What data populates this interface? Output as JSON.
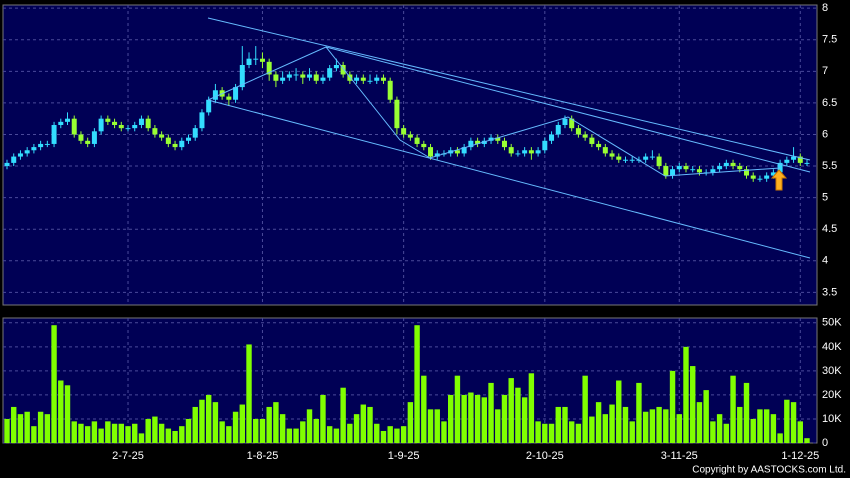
{
  "chart_data": {
    "type": "candlestick",
    "copyright": "Copyright by AASTOCKS.com Ltd.",
    "categories": [
      null,
      null,
      null,
      null,
      null,
      null,
      null,
      null,
      null,
      null,
      null,
      null,
      null,
      null,
      null,
      null,
      null,
      null,
      "2-7-25",
      null,
      null,
      null,
      null,
      null,
      null,
      null,
      null,
      null,
      null,
      null,
      null,
      null,
      null,
      null,
      null,
      null,
      null,
      null,
      "1-8-25",
      null,
      null,
      null,
      null,
      null,
      null,
      null,
      null,
      null,
      null,
      null,
      null,
      null,
      null,
      null,
      null,
      null,
      null,
      null,
      null,
      "1-9-25",
      null,
      null,
      null,
      null,
      null,
      null,
      null,
      null,
      null,
      null,
      null,
      null,
      null,
      null,
      null,
      null,
      null,
      null,
      null,
      null,
      "2-10-25",
      null,
      null,
      null,
      null,
      null,
      null,
      null,
      null,
      null,
      null,
      null,
      null,
      null,
      null,
      null,
      null,
      null,
      null,
      null,
      "3-11-25",
      null,
      null,
      null,
      null,
      null,
      null,
      null,
      null,
      null,
      null,
      null,
      null,
      null,
      null,
      null,
      null,
      null,
      "1-12-25",
      null
    ],
    "open": [
      5.5,
      5.55,
      5.65,
      5.7,
      5.75,
      5.8,
      5.85,
      5.85,
      6.15,
      6.2,
      6.25,
      6.0,
      5.9,
      5.85,
      6.05,
      6.25,
      6.2,
      6.15,
      6.1,
      6.1,
      6.15,
      6.25,
      6.1,
      6.0,
      5.95,
      5.85,
      5.8,
      5.9,
      5.95,
      6.1,
      6.35,
      6.55,
      6.7,
      6.6,
      6.55,
      6.75,
      7.1,
      7.2,
      7.2,
      7.15,
      6.95,
      6.85,
      6.9,
      6.95,
      6.95,
      6.9,
      6.95,
      6.85,
      6.9,
      7.05,
      7.1,
      6.95,
      6.85,
      6.9,
      6.85,
      6.85,
      6.9,
      6.85,
      6.55,
      6.1,
      6.0,
      5.95,
      5.85,
      5.8,
      5.65,
      5.7,
      5.7,
      5.75,
      5.7,
      5.8,
      5.9,
      5.85,
      5.9,
      5.95,
      5.9,
      5.8,
      5.7,
      5.7,
      5.75,
      5.7,
      5.75,
      5.9,
      6.0,
      6.15,
      6.25,
      6.1,
      6.0,
      5.95,
      5.85,
      5.8,
      5.7,
      5.65,
      5.6,
      5.6,
      5.6,
      5.6,
      5.65,
      5.65,
      5.5,
      5.35,
      5.45,
      5.5,
      5.45,
      5.45,
      5.4,
      5.4,
      5.45,
      5.5,
      5.55,
      5.5,
      5.45,
      5.35,
      5.3,
      5.3,
      5.35,
      5.4,
      5.55,
      5.6,
      5.65,
      5.55
    ],
    "high": [
      5.6,
      5.7,
      5.75,
      5.8,
      5.85,
      5.9,
      5.9,
      6.2,
      6.25,
      6.35,
      6.3,
      6.05,
      5.95,
      6.1,
      6.3,
      6.3,
      6.25,
      6.2,
      6.15,
      6.2,
      6.3,
      6.3,
      6.15,
      6.05,
      6.0,
      5.9,
      5.95,
      6.0,
      6.15,
      6.4,
      6.6,
      6.8,
      6.75,
      6.65,
      6.8,
      7.4,
      7.3,
      7.4,
      7.3,
      7.2,
      7.0,
      7.0,
      7.0,
      7.05,
      7.0,
      7.05,
      7.0,
      6.95,
      7.1,
      7.2,
      7.15,
      7.0,
      6.95,
      6.95,
      6.95,
      6.95,
      6.95,
      6.9,
      6.6,
      6.15,
      6.05,
      6.0,
      5.9,
      5.85,
      5.75,
      5.75,
      5.8,
      5.8,
      5.85,
      5.95,
      5.95,
      5.95,
      6.0,
      6.0,
      5.95,
      5.85,
      5.75,
      5.8,
      5.8,
      5.8,
      5.95,
      6.05,
      6.2,
      6.3,
      6.3,
      6.15,
      6.05,
      6.0,
      5.9,
      5.85,
      5.75,
      5.7,
      5.65,
      5.65,
      5.65,
      5.7,
      5.75,
      5.7,
      5.55,
      5.5,
      5.55,
      5.55,
      5.5,
      5.5,
      5.45,
      5.5,
      5.55,
      5.6,
      5.6,
      5.55,
      5.5,
      5.4,
      5.35,
      5.4,
      5.45,
      5.6,
      5.65,
      5.8,
      5.7,
      5.6
    ],
    "low": [
      5.45,
      5.5,
      5.6,
      5.65,
      5.7,
      5.75,
      5.8,
      5.8,
      6.1,
      6.15,
      5.95,
      5.85,
      5.8,
      5.8,
      6.0,
      6.15,
      6.1,
      6.05,
      6.05,
      6.05,
      6.1,
      6.05,
      5.95,
      5.9,
      5.8,
      5.75,
      5.75,
      5.85,
      5.9,
      6.05,
      6.3,
      6.5,
      6.55,
      6.45,
      6.5,
      6.7,
      7.05,
      7.1,
      7.05,
      6.85,
      6.75,
      6.8,
      6.85,
      6.85,
      6.8,
      6.85,
      6.8,
      6.8,
      6.85,
      7.0,
      6.9,
      6.8,
      6.8,
      6.8,
      6.8,
      6.8,
      6.8,
      6.5,
      6.0,
      5.95,
      5.9,
      5.8,
      5.75,
      5.6,
      5.6,
      5.65,
      5.65,
      5.65,
      5.65,
      5.75,
      5.8,
      5.8,
      5.85,
      5.85,
      5.75,
      5.65,
      5.65,
      5.65,
      5.6,
      5.65,
      5.7,
      5.85,
      5.95,
      6.1,
      6.05,
      5.95,
      5.9,
      5.8,
      5.75,
      5.65,
      5.6,
      5.55,
      5.55,
      5.55,
      5.55,
      5.55,
      5.6,
      5.45,
      5.3,
      5.3,
      5.4,
      5.4,
      5.4,
      5.35,
      5.35,
      5.35,
      5.4,
      5.45,
      5.45,
      5.4,
      5.3,
      5.25,
      5.25,
      5.25,
      5.3,
      5.35,
      5.5,
      5.55,
      5.5,
      5.5
    ],
    "close": [
      5.55,
      5.65,
      5.7,
      5.75,
      5.8,
      5.85,
      5.85,
      6.15,
      6.2,
      6.25,
      6.0,
      5.9,
      5.85,
      6.05,
      6.25,
      6.2,
      6.15,
      6.1,
      6.1,
      6.15,
      6.25,
      6.1,
      6.0,
      5.95,
      5.85,
      5.8,
      5.9,
      5.95,
      6.1,
      6.35,
      6.55,
      6.7,
      6.6,
      6.55,
      6.75,
      7.1,
      7.2,
      7.2,
      7.15,
      6.95,
      6.85,
      6.9,
      6.95,
      6.95,
      6.9,
      6.95,
      6.85,
      6.9,
      7.05,
      7.1,
      6.95,
      6.85,
      6.9,
      6.85,
      6.85,
      6.9,
      6.85,
      6.55,
      6.1,
      6.0,
      5.95,
      5.85,
      5.8,
      5.65,
      5.7,
      5.7,
      5.75,
      5.7,
      5.8,
      5.9,
      5.85,
      5.9,
      5.95,
      5.9,
      5.8,
      5.7,
      5.7,
      5.75,
      5.7,
      5.75,
      5.9,
      6.0,
      6.15,
      6.25,
      6.1,
      6.0,
      5.95,
      5.85,
      5.8,
      5.7,
      5.65,
      5.6,
      5.6,
      5.6,
      5.6,
      5.65,
      5.65,
      5.5,
      5.35,
      5.45,
      5.5,
      5.45,
      5.45,
      5.4,
      5.4,
      5.45,
      5.5,
      5.55,
      5.5,
      5.45,
      5.35,
      5.3,
      5.3,
      5.35,
      5.4,
      5.55,
      5.6,
      5.65,
      5.55,
      5.55
    ],
    "volume": [
      10000,
      15000,
      12000,
      13000,
      7000,
      13000,
      12000,
      49000,
      26000,
      24000,
      9000,
      8000,
      7000,
      9000,
      6000,
      9000,
      8000,
      8000,
      7000,
      8000,
      4000,
      10000,
      11000,
      8000,
      6000,
      5000,
      7000,
      10000,
      15000,
      18000,
      20000,
      17000,
      9000,
      7000,
      13000,
      16000,
      41000,
      10000,
      10000,
      15000,
      17000,
      12000,
      6000,
      6000,
      9000,
      14000,
      10000,
      20000,
      7000,
      6000,
      23000,
      8000,
      12000,
      16000,
      15000,
      8000,
      5000,
      7000,
      6000,
      7000,
      17000,
      49000,
      28000,
      14000,
      14000,
      9000,
      20000,
      28000,
      20000,
      21000,
      20000,
      19000,
      25000,
      14000,
      20000,
      27000,
      23000,
      19000,
      29000,
      9000,
      8000,
      8000,
      15000,
      15000,
      9000,
      8000,
      28000,
      11000,
      17000,
      12000,
      16000,
      26000,
      15000,
      9000,
      25000,
      13000,
      14000,
      15000,
      14000,
      30000,
      12000,
      40000,
      32000,
      17000,
      22000,
      9000,
      12000,
      8000,
      28000,
      15000,
      25000,
      10000,
      14000,
      14000,
      12000,
      4000,
      18000,
      17000,
      9000,
      2000
    ],
    "up_color": "#33ddff",
    "down_color": "#99ff33",
    "volume_color": "#80ff00",
    "ylim": [
      3.3,
      8.05
    ],
    "yticks": [
      3.5,
      4,
      4.5,
      5,
      5.5,
      6,
      6.5,
      7,
      7.5,
      8
    ],
    "y2lim": [
      0,
      52000
    ],
    "y2ticks": [
      0,
      {
        "value": 10000,
        "label": "10K"
      },
      {
        "value": 20000,
        "label": "20K"
      },
      {
        "value": 30000,
        "label": "30K"
      },
      {
        "value": 40000,
        "label": "40K"
      },
      {
        "value": 50000,
        "label": "50K"
      }
    ],
    "grid": true
  }
}
